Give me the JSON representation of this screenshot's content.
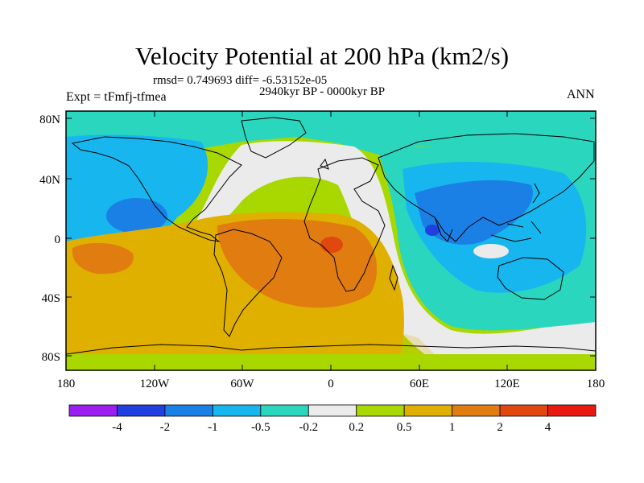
{
  "title": "Velocity Potential at 200 hPa (km2/s)",
  "stats": "rmsd= 0.749693 diff= -6.53152e-05",
  "period": "2940kyr BP - 0000kyr BP",
  "experiment": "Expt = tFmfj-tfmea",
  "season": "ANN",
  "map": {
    "lat_labels": [
      "80N",
      "40N",
      "0",
      "40S",
      "80S"
    ],
    "lon_labels": [
      "180",
      "120W",
      "60W",
      "0",
      "60E",
      "120E",
      "180"
    ],
    "colors": {
      "ocean_base": "#a8d800",
      "land_outline": "#000000"
    }
  },
  "colorbar": {
    "labels": [
      "-4",
      "-2",
      "-1",
      "-0.5",
      "-0.2",
      "0.2",
      "0.5",
      "1",
      "2",
      "4"
    ],
    "colors": [
      "#9a1ff0",
      "#2040e0",
      "#1a80e6",
      "#17b6ee",
      "#2ad6be",
      "#ebebeb",
      "#a8d800",
      "#e0b000",
      "#e07c10",
      "#e04810",
      "#e81a10"
    ]
  }
}
